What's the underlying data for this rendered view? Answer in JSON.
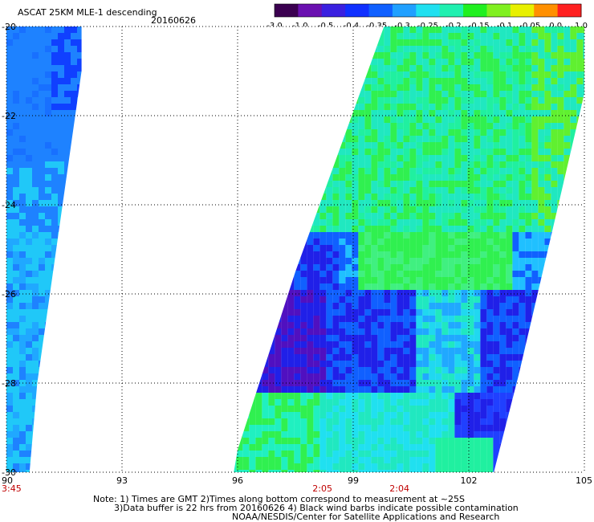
{
  "header": {
    "title": "ASCAT 25KM MLE-1 descending",
    "date": "20160626"
  },
  "colorbar": {
    "labels": [
      "-3.0",
      "-1.0",
      "-0.5",
      "-0.4",
      "-0.35",
      "-0.3",
      "-0.25",
      "-0.2",
      "-0.15",
      "-0.1",
      "-0.05",
      "0.0",
      "1.0"
    ],
    "colors": [
      "#3b0050",
      "#6a10b0",
      "#3a20e0",
      "#1030ff",
      "#1060ff",
      "#20a0ff",
      "#20e0f0",
      "#20f0b0",
      "#20f020",
      "#80f020",
      "#e8f000",
      "#ff9000",
      "#ff2020"
    ]
  },
  "axes": {
    "lon_ticks": [
      "90",
      "93",
      "96",
      "99",
      "102",
      "105"
    ],
    "lon_values": [
      90,
      93,
      96,
      99,
      102,
      105
    ],
    "lat_ticks": [
      "-20",
      "-22",
      "-24",
      "-26",
      "-28",
      "-30"
    ],
    "lat_values": [
      -20,
      -22,
      -24,
      -26,
      -28,
      -30
    ]
  },
  "time_labels": [
    {
      "text": "3:45",
      "lon": 90
    },
    {
      "text": "2:05",
      "lon": 98.2
    },
    {
      "text": "2:04",
      "lon": 100.2
    }
  ],
  "notes": {
    "line1": "Note: 1) Times are GMT 2)Times along bottom correspond to measurement at ~25S",
    "line2": "3)Data buffer is 22 hrs from 20160626 4) Black wind barbs indicate possible contamination",
    "line3": "NOAA/NESDIS/Center for Satellite Applications and Research"
  },
  "swaths": [
    {
      "name": "west-swath",
      "outline": [
        [
          90,
          -20
        ],
        [
          91.95,
          -20
        ],
        [
          91.95,
          -21
        ],
        [
          90.8,
          -28
        ],
        [
          90.6,
          -30
        ],
        [
          90,
          -30
        ]
      ]
    },
    {
      "name": "east-swath",
      "outline": [
        [
          99.8,
          -20
        ],
        [
          105,
          -20
        ],
        [
          105,
          -21.5
        ],
        [
          103.3,
          -27.8
        ],
        [
          102.65,
          -30
        ],
        [
          95.9,
          -30
        ],
        [
          96.0,
          -29.5
        ],
        [
          97.5,
          -25.5
        ]
      ]
    }
  ],
  "map_colors": {
    "west_base": "#1e82ff",
    "west_dark": "#1040ff",
    "west_light": "#20c8f8",
    "east_base": "#20e8c0",
    "east_green": "#30f050",
    "east_blue": "#1060ff",
    "east_purple": "#5010c0",
    "east_deep": "#2020e8"
  }
}
